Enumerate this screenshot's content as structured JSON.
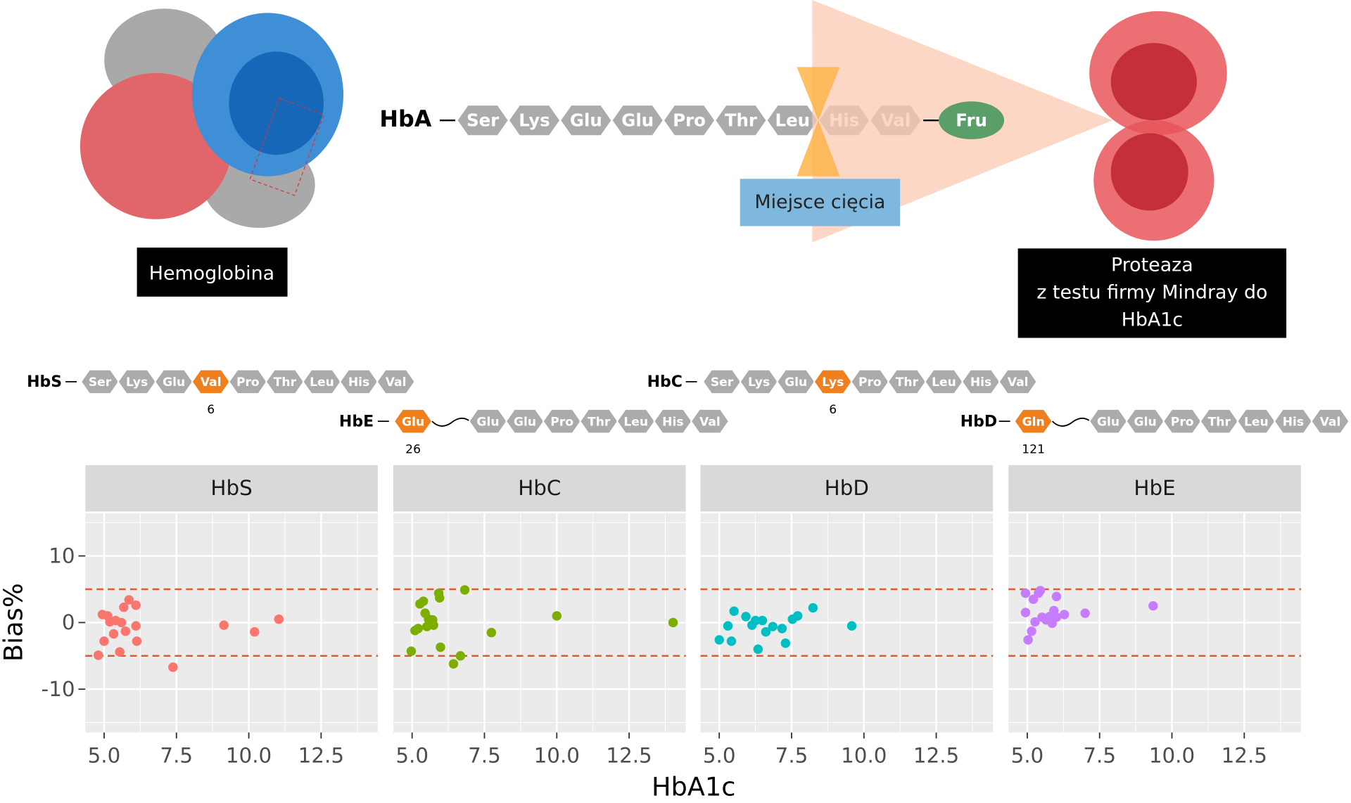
{
  "diagram": {
    "hemoglobin_label": "Hemoglobina",
    "hba": {
      "label": "HbA",
      "residues": [
        "Ser",
        "Lys",
        "Glu",
        "Glu",
        "Pro",
        "Thr",
        "Leu",
        "His",
        "Val"
      ],
      "terminal": "Fru"
    },
    "cleavage_label": "Miejsce cięcia",
    "protease_label": [
      "Proteaza",
      "z testu firmy Mindray do",
      "HbA1c"
    ],
    "variants": [
      {
        "label": "HbS",
        "before": [
          "Ser",
          "Lys",
          "Glu"
        ],
        "mutant": "Val",
        "after": [
          "Pro",
          "Thr",
          "Leu",
          "His",
          "Val"
        ],
        "position": 6
      },
      {
        "label": "HbE",
        "mutant": "Glu",
        "after": [
          "Glu",
          "Glu",
          "Pro",
          "Thr",
          "Leu",
          "His",
          "Val"
        ],
        "position": 26
      },
      {
        "label": "HbC",
        "before": [
          "Ser",
          "Lys",
          "Glu"
        ],
        "mutant": "Lys",
        "after": [
          "Pro",
          "Thr",
          "Leu",
          "His",
          "Val"
        ],
        "position": 6
      },
      {
        "label": "HbD",
        "mutant": "Gln",
        "after": [
          "Glu",
          "Glu",
          "Pro",
          "Thr",
          "Leu",
          "His",
          "Val"
        ],
        "position": 121
      }
    ]
  },
  "axis_labels": {
    "x": "HbA1c",
    "y": "Bias%"
  },
  "chart_data": [
    {
      "type": "scatter",
      "title": "HbS",
      "color": "#f8766d",
      "x": [
        4.8,
        4.94,
        5.0,
        5.12,
        5.2,
        5.33,
        5.4,
        5.54,
        5.6,
        5.68,
        5.74,
        5.86,
        6.1,
        6.1,
        6.13,
        7.38,
        9.14,
        10.2,
        11.04
      ],
      "y": [
        -4.9,
        1.2,
        -2.8,
        1.0,
        0.1,
        -1.7,
        0.3,
        -4.4,
        0.0,
        2.3,
        -1.3,
        3.4,
        2.6,
        -0.5,
        -2.8,
        -6.7,
        -0.4,
        -1.4,
        0.5
      ],
      "xlim": [
        4.35,
        14.46
      ],
      "ylim": [
        -16.5,
        16.4
      ],
      "xticks": [
        {
          "value": 5,
          "label": "5.0"
        },
        {
          "value": 7.5,
          "label": "7.5"
        },
        {
          "value": 10,
          "label": "10.0"
        },
        {
          "value": 12.5,
          "label": "12.5"
        }
      ],
      "yticks": [
        -10,
        0,
        10
      ],
      "hlines": [
        5,
        -5
      ],
      "hline_color": "#e8572a",
      "grid": true
    },
    {
      "type": "scatter",
      "title": "HbC",
      "color": "#7cae00",
      "x": [
        4.97,
        5.1,
        5.21,
        5.27,
        5.39,
        5.45,
        5.51,
        5.57,
        5.71,
        5.74,
        5.92,
        5.95,
        5.98,
        6.43,
        6.67,
        6.82,
        7.74,
        10.0,
        14.02
      ],
      "y": [
        -4.3,
        -1.2,
        -0.9,
        2.8,
        3.2,
        1.4,
        -0.6,
        0.5,
        0.4,
        -0.4,
        4.4,
        3.7,
        -3.7,
        -6.2,
        -5.0,
        4.9,
        -1.5,
        1.0,
        0.0
      ],
      "xlim": [
        4.35,
        14.46
      ],
      "ylim": [
        -16.5,
        16.4
      ],
      "xticks": [
        {
          "value": 5,
          "label": "5.0"
        },
        {
          "value": 7.5,
          "label": "7.5"
        },
        {
          "value": 10,
          "label": "10.0"
        },
        {
          "value": 12.5,
          "label": "12.5"
        }
      ],
      "yticks": [
        -10,
        0,
        10
      ],
      "hlines": [
        5,
        -5
      ],
      "hline_color": "#e8572a",
      "grid": true
    },
    {
      "type": "scatter",
      "title": "HbD",
      "color": "#00bfc4",
      "x": [
        5.0,
        5.3,
        5.42,
        5.51,
        5.92,
        6.13,
        6.25,
        6.34,
        6.49,
        6.61,
        6.85,
        7.17,
        7.29,
        7.53,
        7.71,
        8.24,
        9.58
      ],
      "y": [
        -2.6,
        -0.5,
        -2.8,
        1.7,
        0.9,
        -0.4,
        0.3,
        -4.0,
        0.3,
        -1.4,
        -0.6,
        -0.9,
        -3.1,
        0.5,
        1.0,
        2.2,
        -0.5
      ],
      "xlim": [
        4.35,
        14.46
      ],
      "ylim": [
        -16.5,
        16.4
      ],
      "xticks": [
        {
          "value": 5,
          "label": "5.0"
        },
        {
          "value": 7.5,
          "label": "7.5"
        },
        {
          "value": 10,
          "label": "10.0"
        },
        {
          "value": 12.5,
          "label": "12.5"
        }
      ],
      "yticks": [
        -10,
        0,
        10
      ],
      "hlines": [
        5,
        -5
      ],
      "hline_color": "#e8572a",
      "grid": true
    },
    {
      "type": "scatter",
      "title": "HbE",
      "color": "#c77cff",
      "x": [
        4.94,
        4.94,
        5.03,
        5.15,
        5.21,
        5.27,
        5.39,
        5.45,
        5.51,
        5.65,
        5.77,
        5.86,
        5.92,
        6.01,
        6.01,
        6.28,
        7.0,
        9.35
      ],
      "y": [
        4.4,
        1.5,
        -2.6,
        -1.3,
        3.5,
        0.1,
        4.4,
        4.8,
        0.8,
        0.4,
        0.9,
        -0.1,
        1.8,
        3.9,
        0.8,
        1.2,
        1.4,
        2.5
      ],
      "xlim": [
        4.35,
        14.46
      ],
      "ylim": [
        -16.5,
        16.4
      ],
      "xticks": [
        {
          "value": 5,
          "label": "5.0"
        },
        {
          "value": 7.5,
          "label": "7.5"
        },
        {
          "value": 10,
          "label": "10.0"
        },
        {
          "value": 12.5,
          "label": "12.5"
        }
      ],
      "yticks": [
        -10,
        0,
        10
      ],
      "hlines": [
        5,
        -5
      ],
      "hline_color": "#e8572a",
      "grid": true
    }
  ]
}
